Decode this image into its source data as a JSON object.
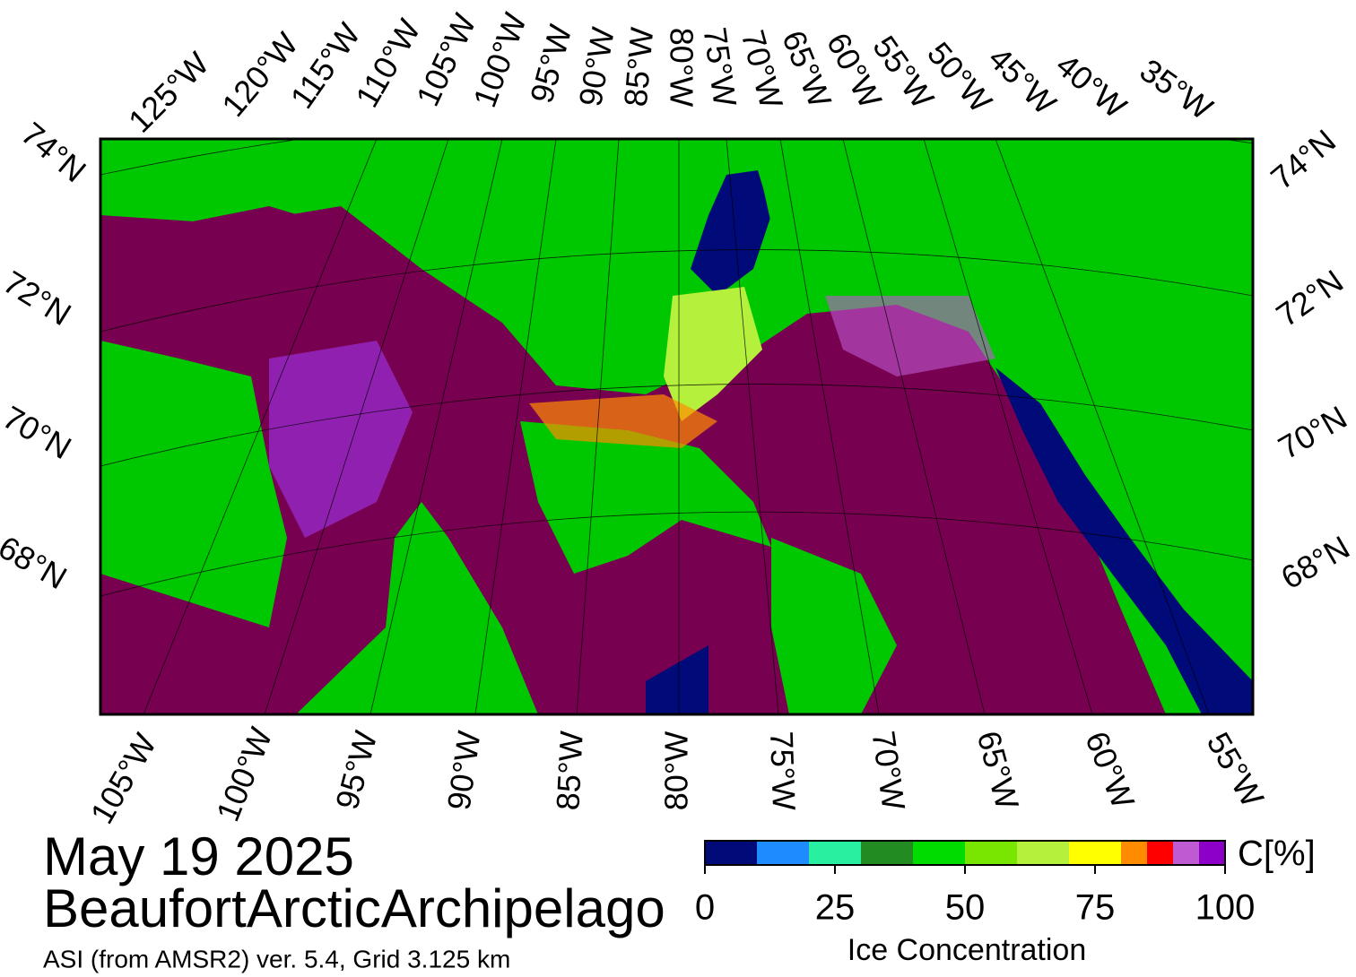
{
  "date": "May 19 2025",
  "region": "BeaufortArcticArchipelago",
  "source": "ASI (from AMSR2) ver. 5.4,  Grid 3.125 km",
  "map": {
    "top_lon_labels": [
      "125°W",
      "120°W",
      "115°W",
      "110°W",
      "105°W",
      "100°W",
      "95°W",
      "90°W",
      "85°W",
      "80°W",
      "75°W",
      "70°W",
      "65°W",
      "60°W",
      "55°W",
      "50°W",
      "45°W",
      "40°W",
      "35°W"
    ],
    "bottom_lon_labels": [
      "105°W",
      "100°W",
      "95°W",
      "90°W",
      "85°W",
      "80°W",
      "75°W",
      "70°W",
      "65°W",
      "60°W",
      "55°W"
    ],
    "left_lat_labels": [
      "74°N",
      "72°N",
      "70°N",
      "68°N"
    ],
    "right_lat_labels": [
      "74°N",
      "72°N",
      "70°N",
      "68°N"
    ]
  },
  "colorbar": {
    "unit": "C[%]",
    "label": "Ice Concentration",
    "range": [
      0,
      100
    ],
    "ticks": [
      0,
      25,
      50,
      75,
      100
    ],
    "bounds": [
      0,
      10,
      20,
      30,
      40,
      50,
      60,
      70,
      80,
      85,
      90,
      95,
      100
    ],
    "colors": [
      "#000a78",
      "#1e8cff",
      "#28f0a0",
      "#228b22",
      "#00dc00",
      "#78e600",
      "#b4f03c",
      "#ffff00",
      "#ff8c00",
      "#ff0000",
      "#be5ad2",
      "#8c00c8"
    ]
  }
}
